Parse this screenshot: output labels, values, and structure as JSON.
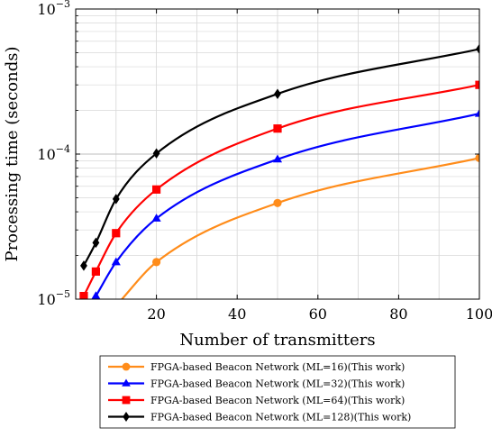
{
  "chart_data": {
    "type": "line",
    "title": "",
    "xlabel": "Number of transmitters",
    "ylabel": "Processing time (seconds)",
    "xscale": "linear",
    "yscale": "log",
    "xlim": [
      0,
      100
    ],
    "ylim": [
      1e-05,
      0.001
    ],
    "x_ticks": [
      {
        "value": 20,
        "label": "20"
      },
      {
        "value": 40,
        "label": "40"
      },
      {
        "value": 60,
        "label": "60"
      },
      {
        "value": 80,
        "label": "80"
      },
      {
        "value": 100,
        "label": "100"
      }
    ],
    "y_ticks": [
      {
        "value": 1e-05,
        "base": "10",
        "exp": "−5"
      },
      {
        "value": 0.0001,
        "base": "10",
        "exp": "−4"
      },
      {
        "value": 0.001,
        "base": "10",
        "exp": "−3"
      }
    ],
    "grid": true,
    "legend_position": "below",
    "series": [
      {
        "name": "FPGA-based Beacon Network (ML=16)(This work)",
        "color": "#ff8c1a",
        "marker": "circle",
        "x": [
          10,
          20,
          50,
          100
        ],
        "y": [
          9e-06,
          1.8e-05,
          4.6e-05,
          9.4e-05
        ]
      },
      {
        "name": "FPGA-based Beacon Network (ML=32)(This work)",
        "color": "#0000ff",
        "marker": "triangle",
        "x": [
          5,
          10,
          20,
          50,
          100
        ],
        "y": [
          1.05e-05,
          1.8e-05,
          3.6e-05,
          9.2e-05,
          0.00019
        ]
      },
      {
        "name": "FPGA-based Beacon Network (ML=64)(This work)",
        "color": "#ff0000",
        "marker": "square",
        "x": [
          2,
          5,
          10,
          20,
          50,
          100
        ],
        "y": [
          1.05e-05,
          1.55e-05,
          2.85e-05,
          5.7e-05,
          0.00015,
          0.0003
        ]
      },
      {
        "name": "FPGA-based Beacon Network (ML=128)(This work)",
        "color": "#000000",
        "marker": "diamond",
        "x": [
          2,
          5,
          10,
          20,
          50,
          100
        ],
        "y": [
          1.7e-05,
          2.45e-05,
          4.9e-05,
          0.000101,
          0.00026,
          0.00053
        ]
      }
    ]
  }
}
